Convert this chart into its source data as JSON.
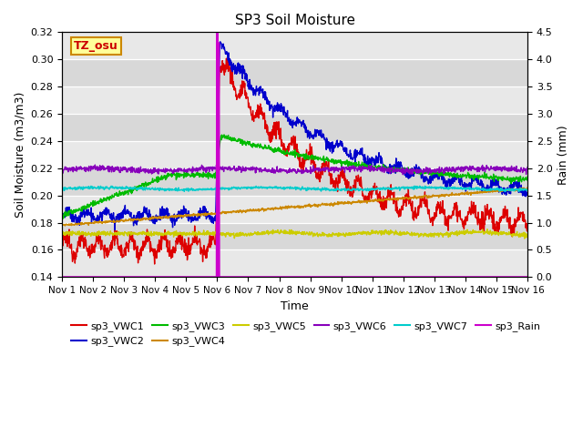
{
  "title": "SP3 Soil Moisture",
  "ylabel_left": "Soil Moisture (m3/m3)",
  "ylabel_right": "Rain (mm)",
  "xlabel": "Time",
  "ylim_left": [
    0.14,
    0.32
  ],
  "ylim_right": [
    0.0,
    4.5
  ],
  "yticks_left": [
    0.14,
    0.16,
    0.18,
    0.2,
    0.22,
    0.24,
    0.26,
    0.28,
    0.3,
    0.32
  ],
  "yticks_right": [
    0.0,
    0.5,
    1.0,
    1.5,
    2.0,
    2.5,
    3.0,
    3.5,
    4.0,
    4.5
  ],
  "xtick_labels": [
    "Nov 1",
    "Nov 2",
    "Nov 3",
    "Nov 4",
    "Nov 5",
    "Nov 6",
    "Nov 7",
    "Nov 8",
    "Nov 9",
    "Nov 10",
    "Nov 11",
    "Nov 12",
    "Nov 13",
    "Nov 14",
    "Nov 15",
    "Nov 16"
  ],
  "label_box_text": "TZ_osu",
  "label_box_color": "#ffff99",
  "label_box_edge": "#cc8800",
  "bg_light": "#e8e8e8",
  "bg_dark": "#d0d0d0",
  "colors": {
    "vwc1": "#dd0000",
    "vwc2": "#0000cc",
    "vwc3": "#00bb00",
    "vwc4": "#cc8800",
    "vwc5": "#cccc00",
    "vwc6": "#8800bb",
    "vwc7": "#00cccc",
    "rain": "#cc00cc"
  },
  "rain_day": 5.0,
  "n_days": 15
}
